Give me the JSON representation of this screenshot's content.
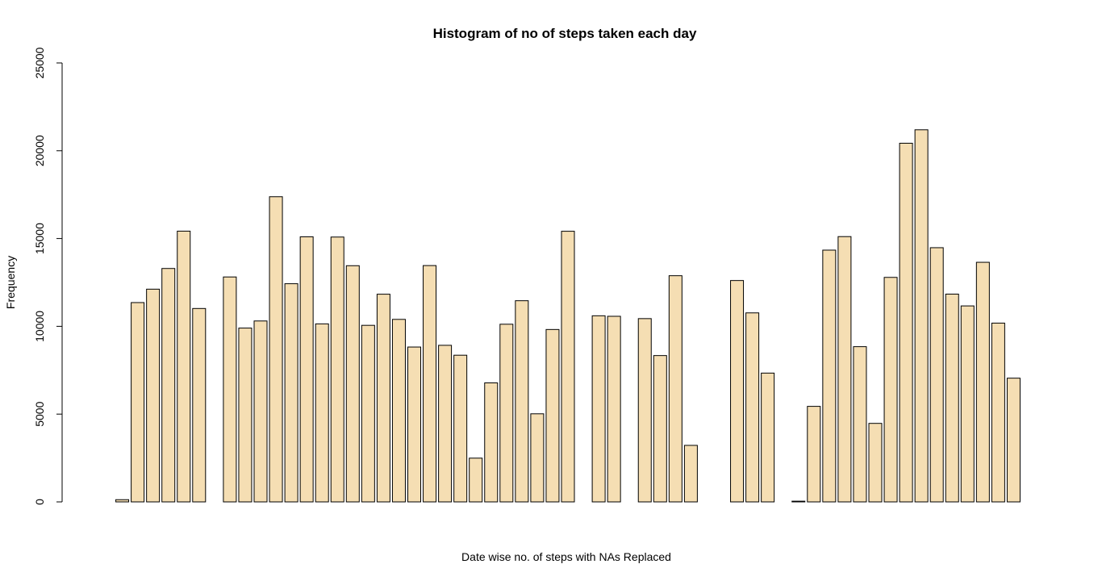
{
  "chart_data": {
    "type": "bar",
    "title": "Histogram of no of steps taken each day",
    "xlabel": "Date wise no. of steps with NAs Replaced",
    "ylabel": "Frequency",
    "ylim": [
      0,
      25000
    ],
    "yticks": [
      0,
      5000,
      10000,
      15000,
      20000,
      25000
    ],
    "grid": false,
    "legend": "none",
    "bar_fill": "#f5deb3",
    "bar_stroke": "#000000",
    "values": [
      0,
      126,
      11352,
      12116,
      13294,
      15420,
      11015,
      0,
      12811,
      9900,
      10304,
      17382,
      12426,
      15098,
      10139,
      15084,
      13452,
      10056,
      11829,
      10395,
      8821,
      13460,
      8918,
      8355,
      2492,
      6778,
      10119,
      11458,
      5018,
      9819,
      15414,
      0,
      10600,
      10571,
      0,
      10439,
      8334,
      12883,
      3219,
      0,
      0,
      12608,
      10765,
      7336,
      0,
      41,
      5441,
      14339,
      15110,
      8841,
      4472,
      12787,
      20427,
      21194,
      14478,
      11834,
      11162,
      13646,
      10183,
      7047,
      0
    ]
  }
}
